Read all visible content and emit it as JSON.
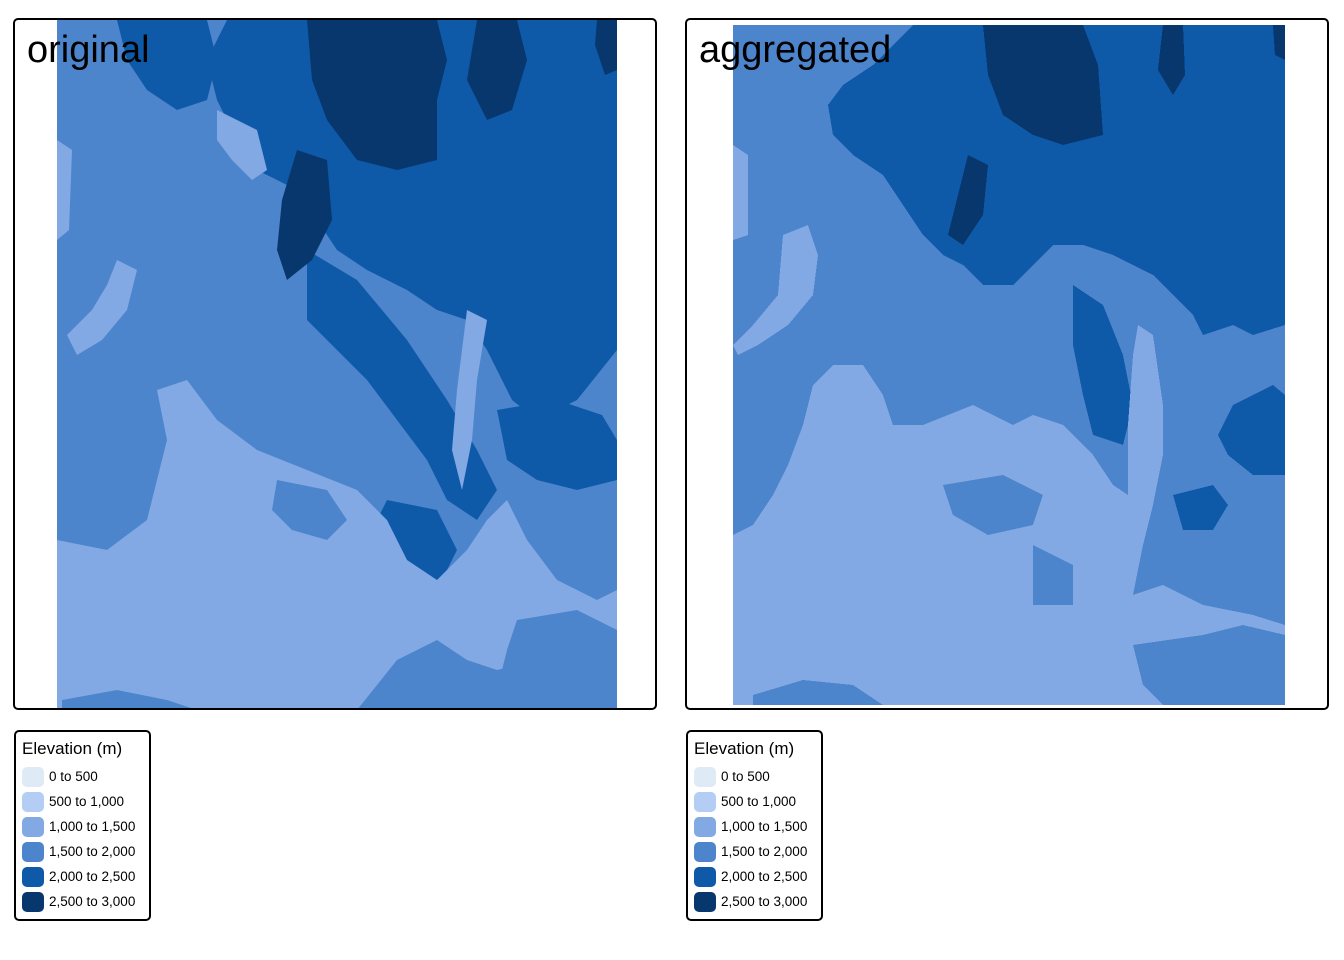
{
  "panels": [
    {
      "id": "original",
      "title": "original"
    },
    {
      "id": "aggregated",
      "title": "aggregated"
    }
  ],
  "legend": {
    "title": "Elevation (m)",
    "items": [
      {
        "label": "0 to 500",
        "color": "#deebf7"
      },
      {
        "label": "500 to 1,000",
        "color": "#b3cdf5"
      },
      {
        "label": "1,000 to 1,500",
        "color": "#82a9e4"
      },
      {
        "label": "1,500 to 2,000",
        "color": "#4d85cc"
      },
      {
        "label": "2,000 to 2,500",
        "color": "#0e5aa8"
      },
      {
        "label": "2,500 to 3,000",
        "color": "#08376e"
      }
    ]
  }
}
